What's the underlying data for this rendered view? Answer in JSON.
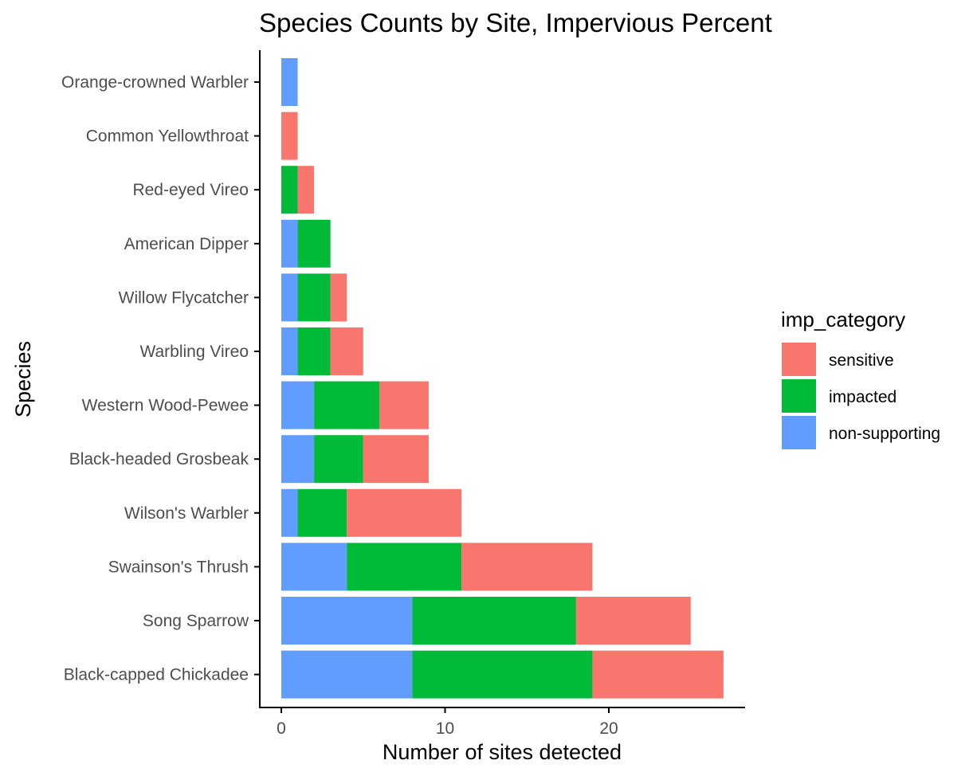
{
  "chart_data": {
    "type": "bar",
    "orientation": "horizontal",
    "stacked": true,
    "title": "Species Counts by Site, Impervious Percent",
    "xlabel": "Number of sites detected",
    "ylabel": "Species",
    "xlim": [
      0,
      27
    ],
    "xticks": [
      "0",
      "10",
      "20"
    ],
    "grid": false,
    "legend_position": "right",
    "legend_title": "imp_category",
    "categories": [
      "Orange-crowned Warbler",
      "Common Yellowthroat",
      "Red-eyed Vireo",
      "American Dipper",
      "Willow Flycatcher",
      "Warbling Vireo",
      "Western Wood-Pewee",
      "Black-headed Grosbeak",
      "Wilson's Warbler",
      "Swainson's Thrush",
      "Song Sparrow",
      "Black-capped Chickadee"
    ],
    "series": [
      {
        "name": "sensitive",
        "color": "#F8766D",
        "values": [
          0,
          1,
          1,
          0,
          1,
          2,
          3,
          4,
          7,
          8,
          7,
          8
        ]
      },
      {
        "name": "impacted",
        "color": "#00BA38",
        "values": [
          0,
          0,
          1,
          2,
          2,
          2,
          4,
          3,
          3,
          7,
          10,
          11
        ]
      },
      {
        "name": "non-supporting",
        "color": "#619CFF",
        "values": [
          1,
          0,
          0,
          1,
          1,
          1,
          2,
          2,
          1,
          4,
          8,
          8
        ]
      }
    ]
  }
}
